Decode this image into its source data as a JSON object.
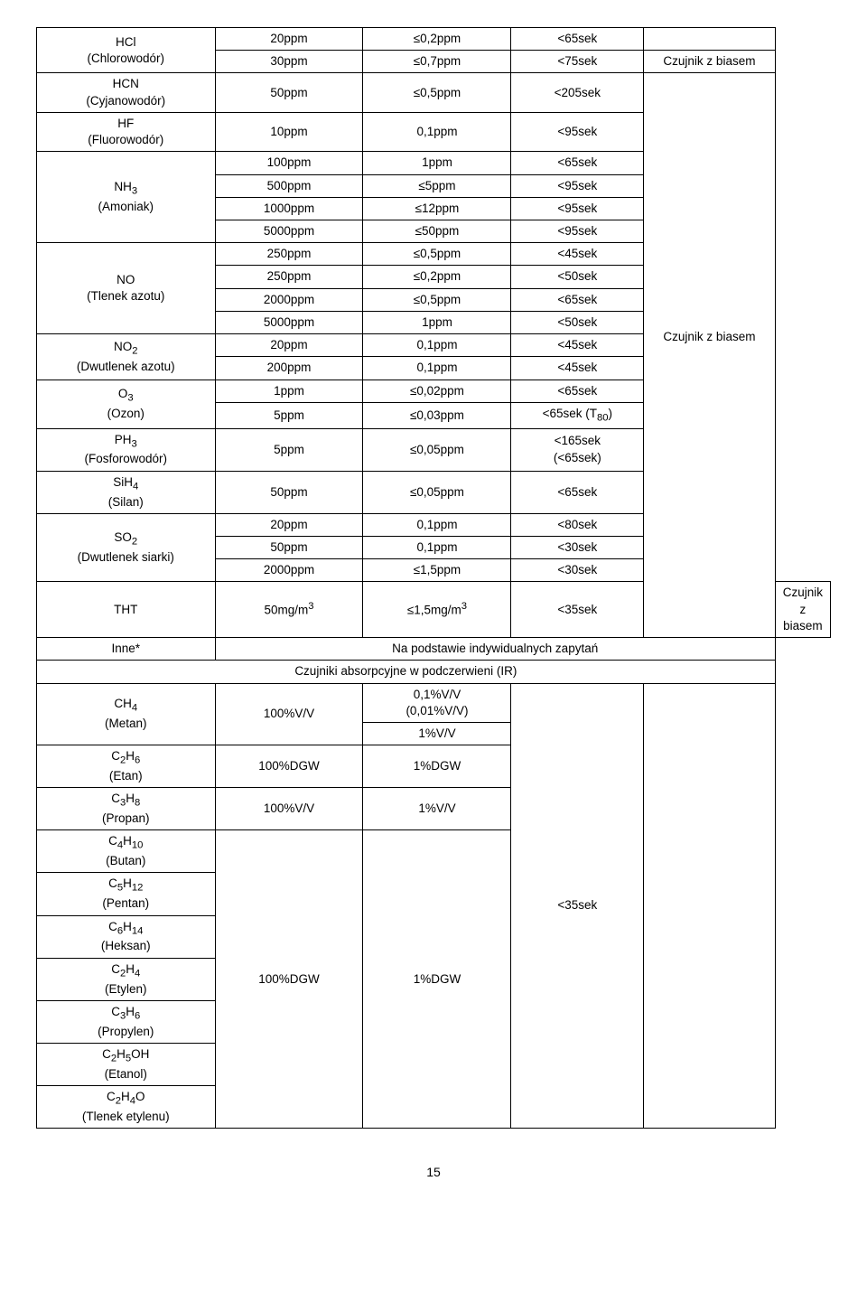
{
  "page_number": "15",
  "col_widths": {
    "c1": "24%",
    "c2": "20%",
    "c3": "20%",
    "c4": "18%",
    "c5": "18%"
  },
  "rows": {
    "hcl_name": "HCl<br>(Chlorowodór)",
    "hcl_r1": [
      "20ppm",
      "≤0,2ppm",
      "<65sek",
      ""
    ],
    "hcl_r2": [
      "30ppm",
      "≤0,7ppm",
      "<75sek",
      "Czujnik z biasem"
    ],
    "hcn_name": "HCN<br>(Cyjanowodór)",
    "hcn_r": [
      "50ppm",
      "≤0,5ppm",
      "<205sek"
    ],
    "hf_name": "HF<br>(Fluorowodór)",
    "hf_r": [
      "10ppm",
      "0,1ppm",
      "<95sek"
    ],
    "nh3_name": "NH<sub>3</sub><br>(Amoniak)",
    "nh3_r1": [
      "100ppm",
      "1ppm",
      "<65sek"
    ],
    "nh3_r2": [
      "500ppm",
      "≤5ppm",
      "<95sek"
    ],
    "nh3_r3": [
      "1000ppm",
      "≤12ppm",
      "<95sek"
    ],
    "nh3_r4": [
      "5000ppm",
      "≤50ppm",
      "<95sek"
    ],
    "no_name": "NO<br>(Tlenek azotu)",
    "no_r1": [
      "250ppm",
      "≤0,5ppm",
      "<45sek"
    ],
    "no_r2": [
      "250ppm",
      "≤0,2ppm",
      "<50sek"
    ],
    "no_r3": [
      "2000ppm",
      "≤0,5ppm",
      "<65sek"
    ],
    "no_r4": [
      "5000ppm",
      "1ppm",
      "<50sek"
    ],
    "no_note": "Czujnik z biasem",
    "no2_name": "NO<sub>2</sub><br>(Dwutlenek azotu)",
    "no2_r1": [
      "20ppm",
      "0,1ppm",
      "<45sek"
    ],
    "no2_r2": [
      "200ppm",
      "0,1ppm",
      "<45sek"
    ],
    "o3_name": "O<sub>3</sub><br>(Ozon)",
    "o3_r1": [
      "1ppm",
      "≤0,02ppm",
      "<65sek"
    ],
    "o3_r2": [
      "5ppm",
      "≤0,03ppm",
      "<65sek (T<sub>80</sub>)"
    ],
    "ph3_name": "PH<sub>3</sub><br>(Fosforowodór)",
    "ph3_r": [
      "5ppm",
      "≤0,05ppm",
      "<165sek<br>(<65sek)"
    ],
    "sih4_name": "SiH<sub>4</sub><br>(Silan)",
    "sih4_r": [
      "50ppm",
      "≤0,05ppm",
      "<65sek"
    ],
    "so2_name": "SO<sub>2</sub><br>(Dwutlenek siarki)",
    "so2_r1": [
      "20ppm",
      "0,1ppm",
      "<80sek"
    ],
    "so2_r2": [
      "50ppm",
      "0,1ppm",
      "<30sek"
    ],
    "so2_r3": [
      "2000ppm",
      "≤1,5ppm",
      "<30sek"
    ],
    "tht_name": "THT",
    "tht_r": [
      "50mg/m<sup>3</sup>",
      "≤1,5mg/m<sup>3</sup>",
      "<35sek",
      "Czujnik z biasem"
    ],
    "inne_name": "Inne*",
    "inne_text": "Na podstawie indywidualnych zapytań",
    "ir_header": "Czujniki absorpcyjne w podczerwieni (IR)",
    "ch4_name": "CH<sub>4</sub><br>(Metan)",
    "ch4_c2": "100%V/V",
    "ch4_r1c3": "0,1%V/V<br>(0,01%V/V)",
    "ch4_r2c3": "1%V/V",
    "ir_time": "<35sek",
    "c2h6_name": "C<sub>2</sub>H<sub>6</sub><br>(Etan)",
    "c2h6_r": [
      "100%DGW",
      "1%DGW"
    ],
    "c3h8_name": "C<sub>3</sub>H<sub>8</sub><br>(Propan)",
    "c3h8_r": [
      "100%V/V",
      "1%V/V"
    ],
    "c4h10_name": "C<sub>4</sub>H<sub>10</sub><br>(Butan)",
    "c5h12_name": "C<sub>5</sub>H<sub>12</sub><br>(Pentan)",
    "c6h14_name": "C<sub>6</sub>H<sub>14</sub><br>(Heksan)",
    "c2h4_name": "C<sub>2</sub>H<sub>4</sub><br>(Etylen)",
    "c3h6_name": "C<sub>3</sub>H<sub>6</sub><br>(Propylen)",
    "c2h5oh_name": "C<sub>2</sub>H<sub>5</sub>OH<br>(Etanol)",
    "c2h4o_name": "C<sub>2</sub>H<sub>4</sub>O<br>(Tlenek etylenu)",
    "dgw_range": "100%DGW",
    "dgw_res": "1%DGW"
  }
}
